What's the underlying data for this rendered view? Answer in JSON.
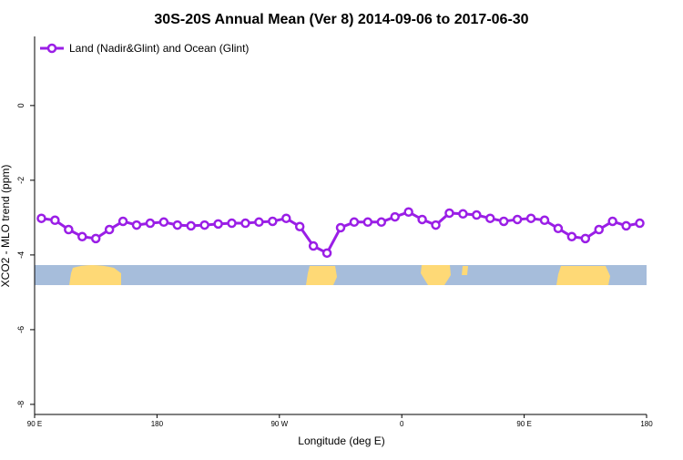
{
  "chart_data": {
    "type": "line",
    "title": "30S-20S Annual Mean (Ver 8)   2014-09-06 to 2017-06-30",
    "x_label": "Longitude (deg E)",
    "y_label": "XCO2 - MLO trend (ppm)",
    "x": [
      95,
      105,
      115,
      125,
      135,
      145,
      155,
      165,
      175,
      185,
      195,
      205,
      215,
      225,
      235,
      245,
      255,
      265,
      275,
      285,
      295,
      305,
      315,
      325,
      335,
      345,
      355,
      365,
      375,
      385,
      395,
      405,
      415,
      425,
      435,
      445,
      455,
      465,
      475,
      485,
      495,
      505,
      515,
      525,
      535
    ],
    "series": [
      {
        "name": "Land (Nadir&Glint) and Ocean (Glint)",
        "color": "#9a1ee6",
        "values": [
          -3.02,
          -3.07,
          -3.32,
          -3.51,
          -3.56,
          -3.32,
          -3.1,
          -3.2,
          -3.15,
          -3.12,
          -3.2,
          -3.22,
          -3.2,
          -3.17,
          -3.15,
          -3.15,
          -3.12,
          -3.1,
          -3.02,
          -3.24,
          -3.76,
          -3.95,
          -3.27,
          -3.12,
          -3.12,
          -3.12,
          -2.98,
          -2.85,
          -3.05,
          -3.2,
          -2.88,
          -2.9,
          -2.93,
          -3.02,
          -3.1,
          -3.05,
          -3.02,
          -3.07,
          -3.29,
          -3.51,
          -3.56,
          -3.32,
          -3.1,
          -3.22,
          -3.15
        ]
      }
    ],
    "xlim": [
      90,
      540
    ],
    "xticks": [
      {
        "value": 90,
        "label": "90 E"
      },
      180,
      {
        "value": 270,
        "label": "90 W"
      },
      {
        "value": 360,
        "label": "0"
      },
      {
        "value": 450,
        "label": "90 E"
      },
      {
        "value": 540,
        "label": "180"
      }
    ],
    "ylim": [
      -8.27,
      1.85
    ],
    "yticks": [
      0,
      -2,
      -4,
      -6,
      -8
    ],
    "legend": "top-left"
  }
}
